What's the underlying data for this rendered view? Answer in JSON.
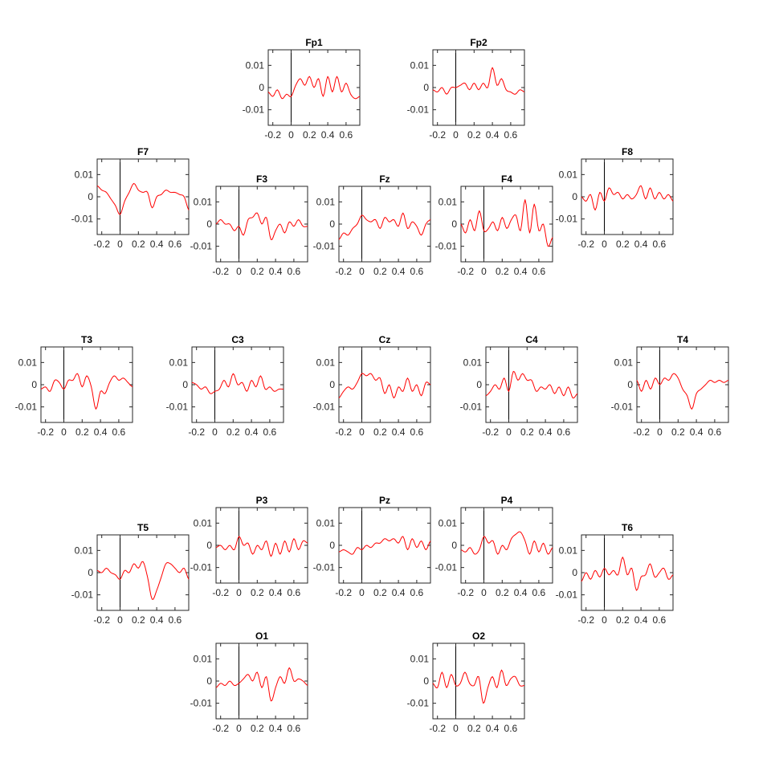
{
  "chart_data": {
    "type": "line",
    "xlim": [
      -0.25,
      0.75
    ],
    "ylim": [
      -0.017,
      0.017
    ],
    "x_ticks": [
      -0.2,
      0,
      0.2,
      0.4,
      0.6
    ],
    "x_tick_labels": [
      "-0.2",
      "0",
      "0.2",
      "0.4",
      "0.6"
    ],
    "y_ticks": [
      0.01,
      0,
      -0.01
    ],
    "y_tick_labels": [
      "0.01",
      "0",
      "-0.01"
    ],
    "stimulus_line_x": 0,
    "line_color": "#ff0000",
    "axis_color": "#262626",
    "grid": false,
    "x_step": 0.05,
    "channels": [
      {
        "name": "Fp1",
        "x": [
          -0.25,
          -0.2,
          -0.15,
          -0.1,
          -0.05,
          0,
          0.05,
          0.1,
          0.15,
          0.2,
          0.25,
          0.3,
          0.35,
          0.4,
          0.45,
          0.5,
          0.55,
          0.6,
          0.65,
          0.7,
          0.75
        ],
        "y": [
          -0.002,
          -0.004,
          -0.001,
          -0.005,
          -0.003,
          -0.004,
          0.001,
          0.004,
          0.001,
          0.005,
          0,
          0.004,
          -0.004,
          0.005,
          -0.002,
          0.005,
          -0.002,
          0.002,
          -0.003,
          -0.005,
          -0.004
        ]
      },
      {
        "name": "Fp2",
        "x": [
          -0.25,
          -0.2,
          -0.15,
          -0.1,
          -0.05,
          0,
          0.05,
          0.1,
          0.15,
          0.2,
          0.25,
          0.3,
          0.35,
          0.4,
          0.45,
          0.5,
          0.55,
          0.6,
          0.65,
          0.7,
          0.75
        ],
        "y": [
          -0.001,
          -0.002,
          0,
          -0.003,
          0,
          0,
          0.001,
          0.002,
          -0.001,
          0.002,
          -0.001,
          0.002,
          0,
          0.009,
          0.001,
          0.004,
          -0.001,
          -0.002,
          -0.003,
          -0.001,
          -0.002
        ]
      },
      {
        "name": "F7",
        "x": [
          -0.25,
          -0.2,
          -0.15,
          -0.1,
          -0.05,
          0,
          0.05,
          0.1,
          0.15,
          0.2,
          0.25,
          0.3,
          0.35,
          0.4,
          0.45,
          0.5,
          0.55,
          0.6,
          0.65,
          0.7,
          0.75
        ],
        "y": [
          0.005,
          0.003,
          0.002,
          -0.001,
          -0.004,
          -0.008,
          -0.002,
          0.002,
          0.006,
          0.003,
          0.002,
          0.002,
          -0.005,
          0,
          0.001,
          0.003,
          0.002,
          0.002,
          0.001,
          0,
          -0.006
        ]
      },
      {
        "name": "F3",
        "x": [
          -0.25,
          -0.2,
          -0.15,
          -0.1,
          -0.05,
          0,
          0.05,
          0.1,
          0.15,
          0.2,
          0.25,
          0.3,
          0.35,
          0.4,
          0.45,
          0.5,
          0.55,
          0.6,
          0.65,
          0.7,
          0.75
        ],
        "y": [
          0,
          0.002,
          0,
          0,
          -0.003,
          -0.001,
          -0.005,
          0.002,
          0.003,
          0.005,
          0,
          0.003,
          -0.007,
          -0.003,
          0,
          -0.004,
          0.001,
          -0.001,
          0.002,
          -0.001,
          -0.001
        ]
      },
      {
        "name": "Fz",
        "x": [
          -0.25,
          -0.2,
          -0.15,
          -0.1,
          -0.05,
          0,
          0.05,
          0.1,
          0.15,
          0.2,
          0.25,
          0.3,
          0.35,
          0.4,
          0.45,
          0.5,
          0.55,
          0.6,
          0.65,
          0.7,
          0.75
        ],
        "y": [
          -0.007,
          -0.004,
          -0.005,
          -0.002,
          0,
          0.004,
          0.002,
          0.001,
          0.002,
          -0.002,
          0.003,
          0.001,
          0.002,
          -0.001,
          0.005,
          -0.002,
          0.001,
          -0.001,
          -0.005,
          0,
          0.002
        ]
      },
      {
        "name": "F4",
        "x": [
          -0.25,
          -0.2,
          -0.15,
          -0.1,
          -0.05,
          0,
          0.05,
          0.1,
          0.15,
          0.2,
          0.25,
          0.3,
          0.35,
          0.4,
          0.45,
          0.5,
          0.55,
          0.6,
          0.65,
          0.7,
          0.75
        ],
        "y": [
          0,
          -0.004,
          0.002,
          -0.003,
          0.006,
          -0.003,
          -0.002,
          0.001,
          -0.003,
          0.003,
          -0.002,
          0.002,
          0.004,
          -0.003,
          0.011,
          -0.004,
          0.009,
          -0.003,
          0,
          -0.01,
          -0.006
        ]
      },
      {
        "name": "F8",
        "x": [
          -0.25,
          -0.2,
          -0.15,
          -0.1,
          -0.05,
          0,
          0.05,
          0.1,
          0.15,
          0.2,
          0.25,
          0.3,
          0.35,
          0.4,
          0.45,
          0.5,
          0.55,
          0.6,
          0.65,
          0.7,
          0.75
        ],
        "y": [
          0,
          -0.002,
          0.001,
          -0.006,
          0.002,
          -0.002,
          0.004,
          0.001,
          0.002,
          -0.001,
          0.001,
          -0.001,
          0.001,
          0.005,
          -0.001,
          0.004,
          -0.001,
          0.002,
          -0.001,
          0.001,
          -0.002
        ]
      },
      {
        "name": "T3",
        "x": [
          -0.25,
          -0.2,
          -0.15,
          -0.1,
          -0.05,
          0,
          0.05,
          0.1,
          0.15,
          0.2,
          0.25,
          0.3,
          0.35,
          0.4,
          0.45,
          0.5,
          0.55,
          0.6,
          0.65,
          0.7,
          0.75
        ],
        "y": [
          -0.002,
          -0.001,
          -0.003,
          0.002,
          0.001,
          -0.002,
          0.002,
          0.002,
          0.005,
          -0.001,
          0.004,
          -0.001,
          -0.011,
          -0.003,
          -0.004,
          0.001,
          0.004,
          0.002,
          0.003,
          0.001,
          -0.001
        ]
      },
      {
        "name": "C3",
        "x": [
          -0.25,
          -0.2,
          -0.15,
          -0.1,
          -0.05,
          0,
          0.05,
          0.1,
          0.15,
          0.2,
          0.25,
          0.3,
          0.35,
          0.4,
          0.45,
          0.5,
          0.55,
          0.6,
          0.65,
          0.7,
          0.75
        ],
        "y": [
          0.001,
          0,
          -0.002,
          -0.001,
          -0.004,
          -0.003,
          -0.002,
          0.002,
          -0.001,
          0.005,
          0,
          0.001,
          -0.003,
          0.002,
          -0.001,
          0.004,
          -0.002,
          -0.001,
          -0.003,
          -0.002,
          -0.002
        ]
      },
      {
        "name": "Cz",
        "x": [
          -0.25,
          -0.2,
          -0.15,
          -0.1,
          -0.05,
          0,
          0.05,
          0.1,
          0.15,
          0.2,
          0.25,
          0.3,
          0.35,
          0.4,
          0.45,
          0.5,
          0.55,
          0.6,
          0.65,
          0.7,
          0.75
        ],
        "y": [
          -0.006,
          -0.003,
          -0.001,
          -0.002,
          0.001,
          0.005,
          0.004,
          0.005,
          0.002,
          0.003,
          -0.004,
          0,
          -0.006,
          -0.001,
          -0.003,
          0.003,
          -0.003,
          0,
          -0.005,
          0.001,
          0
        ]
      },
      {
        "name": "C4",
        "x": [
          -0.25,
          -0.2,
          -0.15,
          -0.1,
          -0.05,
          0,
          0.05,
          0.1,
          0.15,
          0.2,
          0.25,
          0.3,
          0.35,
          0.4,
          0.45,
          0.5,
          0.55,
          0.6,
          0.65,
          0.7,
          0.75
        ],
        "y": [
          -0.005,
          -0.003,
          0,
          -0.002,
          0.003,
          -0.003,
          0.006,
          0.002,
          0.005,
          0.002,
          0.002,
          -0.003,
          -0.001,
          -0.002,
          0,
          -0.004,
          -0.001,
          -0.005,
          -0.001,
          -0.006,
          -0.004
        ]
      },
      {
        "name": "T4",
        "x": [
          -0.25,
          -0.2,
          -0.15,
          -0.1,
          -0.05,
          0,
          0.05,
          0.1,
          0.15,
          0.2,
          0.25,
          0.3,
          0.35,
          0.4,
          0.45,
          0.5,
          0.55,
          0.6,
          0.65,
          0.7,
          0.75
        ],
        "y": [
          0.002,
          -0.003,
          0.002,
          -0.002,
          0.003,
          0,
          0.003,
          0.002,
          0.005,
          0.003,
          -0.002,
          -0.005,
          -0.011,
          -0.004,
          -0.002,
          0,
          0.002,
          0.001,
          0.002,
          0.001,
          0.002
        ]
      },
      {
        "name": "P3",
        "x": [
          -0.25,
          -0.2,
          -0.15,
          -0.1,
          -0.05,
          0,
          0.05,
          0.1,
          0.15,
          0.2,
          0.25,
          0.3,
          0.35,
          0.4,
          0.45,
          0.5,
          0.55,
          0.6,
          0.65,
          0.7,
          0.75
        ],
        "y": [
          -0.001,
          0,
          -0.002,
          0,
          -0.002,
          0.004,
          0,
          0.001,
          -0.004,
          0,
          -0.002,
          0.002,
          -0.005,
          0.001,
          -0.004,
          0.002,
          -0.003,
          0.003,
          -0.002,
          0.002,
          0.001
        ]
      },
      {
        "name": "Pz",
        "x": [
          -0.25,
          -0.2,
          -0.15,
          -0.1,
          -0.05,
          0,
          0.05,
          0.1,
          0.15,
          0.2,
          0.25,
          0.3,
          0.35,
          0.4,
          0.45,
          0.5,
          0.55,
          0.6,
          0.65,
          0.7,
          0.75
        ],
        "y": [
          -0.003,
          -0.002,
          -0.003,
          -0.004,
          -0.001,
          -0.002,
          0,
          -0.001,
          0.001,
          0.001,
          0.003,
          0.002,
          0.003,
          0.001,
          0.004,
          -0.002,
          0.003,
          -0.001,
          0.002,
          -0.002,
          0.002
        ]
      },
      {
        "name": "P4",
        "x": [
          -0.25,
          -0.2,
          -0.15,
          -0.1,
          -0.05,
          0,
          0.05,
          0.1,
          0.15,
          0.2,
          0.25,
          0.3,
          0.35,
          0.4,
          0.45,
          0.5,
          0.55,
          0.6,
          0.65,
          0.7,
          0.75
        ],
        "y": [
          -0.002,
          -0.003,
          -0.001,
          -0.004,
          -0.002,
          0.004,
          0.001,
          0.002,
          -0.004,
          0,
          -0.002,
          0.003,
          0.005,
          0.006,
          0.002,
          -0.004,
          0.002,
          -0.003,
          0.001,
          -0.004,
          -0.001
        ]
      },
      {
        "name": "T5",
        "x": [
          -0.25,
          -0.2,
          -0.15,
          -0.1,
          -0.05,
          0,
          0.05,
          0.1,
          0.15,
          0.2,
          0.25,
          0.3,
          0.35,
          0.4,
          0.45,
          0.5,
          0.55,
          0.6,
          0.65,
          0.7,
          0.75
        ],
        "y": [
          0.001,
          0,
          0.002,
          0,
          -0.001,
          -0.003,
          0.001,
          0,
          0.004,
          0.002,
          0.005,
          -0.002,
          -0.012,
          -0.008,
          -0.002,
          0.004,
          0.004,
          0.002,
          0,
          0.002,
          -0.003
        ]
      },
      {
        "name": "T6",
        "x": [
          -0.25,
          -0.2,
          -0.15,
          -0.1,
          -0.05,
          0,
          0.05,
          0.1,
          0.15,
          0.2,
          0.25,
          0.3,
          0.35,
          0.4,
          0.45,
          0.5,
          0.55,
          0.6,
          0.65,
          0.7,
          0.75
        ],
        "y": [
          -0.004,
          0,
          -0.003,
          0.001,
          -0.002,
          0.002,
          -0.001,
          0.001,
          -0.001,
          0.007,
          -0.001,
          0.002,
          -0.008,
          -0.002,
          -0.001,
          0.004,
          -0.002,
          0,
          0.002,
          -0.003,
          -0.001
        ]
      },
      {
        "name": "O1",
        "x": [
          -0.25,
          -0.2,
          -0.15,
          -0.1,
          -0.05,
          0,
          0.05,
          0.1,
          0.15,
          0.2,
          0.25,
          0.3,
          0.35,
          0.4,
          0.45,
          0.5,
          0.55,
          0.6,
          0.65,
          0.7,
          0.75
        ],
        "y": [
          -0.003,
          -0.001,
          -0.002,
          0,
          -0.002,
          -0.001,
          0.001,
          0.003,
          0,
          0.004,
          -0.003,
          0.002,
          -0.009,
          -0.003,
          0.002,
          -0.001,
          0.006,
          0,
          0.001,
          0,
          -0.002
        ]
      },
      {
        "name": "O2",
        "x": [
          -0.25,
          -0.2,
          -0.15,
          -0.1,
          -0.05,
          0,
          0.05,
          0.1,
          0.15,
          0.2,
          0.25,
          0.3,
          0.35,
          0.4,
          0.45,
          0.5,
          0.55,
          0.6,
          0.65,
          0.7,
          0.75
        ],
        "y": [
          -0.001,
          -0.003,
          0.004,
          -0.003,
          0.003,
          -0.002,
          -0.001,
          0.004,
          -0.001,
          -0.002,
          0.002,
          -0.01,
          -0.003,
          0.002,
          -0.003,
          0.005,
          -0.002,
          0.001,
          0.002,
          -0.002,
          -0.002
        ]
      }
    ]
  }
}
